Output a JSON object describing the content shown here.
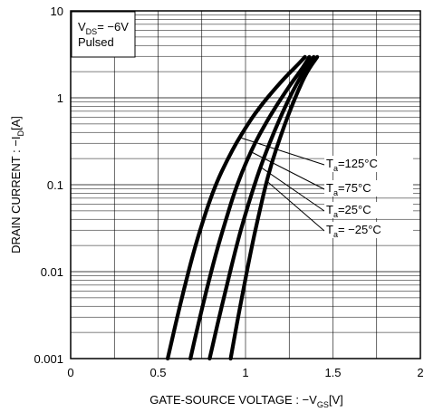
{
  "chart_data": {
    "type": "line",
    "xlabel": "GATE-SOURCE VOLTAGE : −V",
    "xlabel_sub": "GS",
    "xlabel_unit": "[V]",
    "ylabel": "DRAIN CURRENT : −I",
    "ylabel_sub": "D",
    "ylabel_unit": "[A]",
    "xlim": [
      0,
      2
    ],
    "ylim": [
      0.001,
      10
    ],
    "yscale": "log",
    "x_ticks": [
      "0",
      "0.5",
      "1",
      "1.5",
      "2"
    ],
    "y_ticks": [
      "0.001",
      "0.01",
      "0.1",
      "1",
      "10"
    ],
    "grid": true,
    "condition": {
      "line1_prefix": "V",
      "line1_sub": "DS",
      "line1_value": "= −6V",
      "line2": "Pulsed"
    },
    "series": [
      {
        "name": "125°C",
        "label_prefix": "T",
        "label_sub": "a",
        "label_value": "=125°C",
        "points": [
          [
            0.555,
            0.001
          ],
          [
            0.6,
            0.0025
          ],
          [
            0.65,
            0.0065
          ],
          [
            0.7,
            0.016
          ],
          [
            0.75,
            0.035
          ],
          [
            0.8,
            0.07
          ],
          [
            0.85,
            0.125
          ],
          [
            0.9,
            0.2
          ],
          [
            0.95,
            0.31
          ],
          [
            1.0,
            0.45
          ],
          [
            1.05,
            0.64
          ],
          [
            1.1,
            0.87
          ],
          [
            1.15,
            1.15
          ],
          [
            1.2,
            1.5
          ],
          [
            1.25,
            1.92
          ],
          [
            1.3,
            2.42
          ],
          [
            1.34,
            2.95
          ]
        ]
      },
      {
        "name": "75°C",
        "label_prefix": "T",
        "label_sub": "a",
        "label_value": "=75°C",
        "points": [
          [
            0.685,
            0.001
          ],
          [
            0.73,
            0.0025
          ],
          [
            0.78,
            0.0065
          ],
          [
            0.83,
            0.016
          ],
          [
            0.88,
            0.035
          ],
          [
            0.93,
            0.075
          ],
          [
            0.98,
            0.14
          ],
          [
            1.03,
            0.24
          ],
          [
            1.08,
            0.38
          ],
          [
            1.13,
            0.57
          ],
          [
            1.18,
            0.83
          ],
          [
            1.23,
            1.18
          ],
          [
            1.28,
            1.65
          ],
          [
            1.33,
            2.25
          ],
          [
            1.365,
            2.95
          ]
        ]
      },
      {
        "name": "25°C",
        "label_prefix": "T",
        "label_sub": "a",
        "label_value": "=25°C",
        "points": [
          [
            0.795,
            0.001
          ],
          [
            0.84,
            0.0025
          ],
          [
            0.89,
            0.0065
          ],
          [
            0.94,
            0.017
          ],
          [
            0.99,
            0.04
          ],
          [
            1.04,
            0.085
          ],
          [
            1.09,
            0.17
          ],
          [
            1.14,
            0.31
          ],
          [
            1.19,
            0.54
          ],
          [
            1.24,
            0.9
          ],
          [
            1.29,
            1.42
          ],
          [
            1.34,
            2.12
          ],
          [
            1.39,
            2.95
          ]
        ]
      },
      {
        "name": "-25°C",
        "label_prefix": "T",
        "label_sub": "a",
        "label_value": "= −25°C",
        "points": [
          [
            0.915,
            0.001
          ],
          [
            0.95,
            0.0025
          ],
          [
            0.99,
            0.0065
          ],
          [
            1.03,
            0.017
          ],
          [
            1.07,
            0.04
          ],
          [
            1.11,
            0.09
          ],
          [
            1.15,
            0.18
          ],
          [
            1.2,
            0.36
          ],
          [
            1.25,
            0.68
          ],
          [
            1.3,
            1.2
          ],
          [
            1.35,
            1.98
          ],
          [
            1.41,
            2.95
          ]
        ]
      }
    ]
  }
}
